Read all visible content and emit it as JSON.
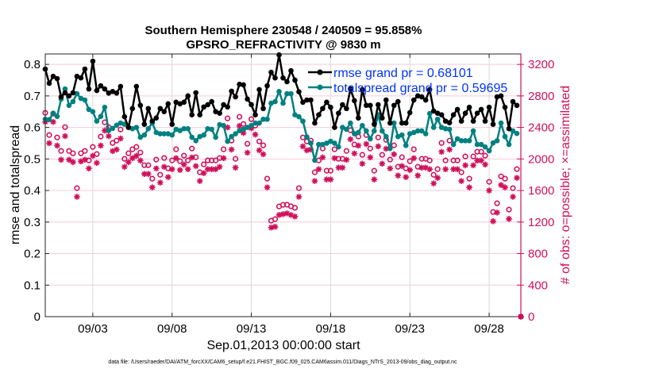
{
  "title_line1": "Southern Hemisphere 230548 / 240509 = 95.858%",
  "title_line2": "GPSRO_REFRACTIVITY @ 9830 m",
  "footer": "data file: /Users/raeder/DAI/ATM_forcXX/CAM6_setup/f.e21.FHIST_BGC.f09_025.CAM6assim.011/Diags_NTrS_2013-09/obs_diag_output.nc",
  "colors": {
    "rmse": "#000000",
    "totalspread": "#008080",
    "obs": "#D0105A",
    "legend_text": "#0033FF",
    "vgrid": "#d8d8d8",
    "hgrid": "#f6cadb"
  },
  "chart_data": {
    "type": "line",
    "xlabel": "Sep.01,2013 00:00:00 start",
    "ylabel": "rmse and totalspread",
    "ylabel_right": "# of obs: o=possible; ×=assimilated",
    "xlim": [
      0,
      30
    ],
    "ylim": [
      0,
      0.833
    ],
    "ylim_right": [
      0,
      3332
    ],
    "x_start": 0,
    "x_step": 0.25,
    "xticks": [
      3,
      8,
      13,
      18,
      23,
      28
    ],
    "xtick_labels": [
      "09/03",
      "09/08",
      "09/13",
      "09/18",
      "09/23",
      "09/28"
    ],
    "yticks": [
      "0",
      "0.1",
      "0.2",
      "0.3",
      "0.4",
      "0.5",
      "0.6",
      "0.7",
      "0.8"
    ],
    "yticks_right": [
      "0",
      "400",
      "800",
      "1200",
      "1600",
      "2000",
      "2400",
      "2800",
      "3200"
    ],
    "grid": true,
    "legend_placement": "top-right",
    "series": [
      {
        "name": "rmse grand pr = 0.68101",
        "axis": "left",
        "marker": "filled-circle",
        "values": [
          0.785,
          0.74,
          0.762,
          0.755,
          0.697,
          0.71,
          0.7,
          0.71,
          0.762,
          0.757,
          0.785,
          0.722,
          0.81,
          0.717,
          0.732,
          0.722,
          0.709,
          0.714,
          0.709,
          0.73,
          0.634,
          0.6,
          0.66,
          0.73,
          0.67,
          0.61,
          0.66,
          0.62,
          0.63,
          0.66,
          0.65,
          0.675,
          0.61,
          0.68,
          0.675,
          0.68,
          0.7,
          0.64,
          0.71,
          0.64,
          0.665,
          0.672,
          0.682,
          0.65,
          0.645,
          0.672,
          0.665,
          0.715,
          0.697,
          0.737,
          0.735,
          0.69,
          0.672,
          0.64,
          0.72,
          0.66,
          0.732,
          0.775,
          0.757,
          0.83,
          0.757,
          0.745,
          0.78,
          0.75,
          0.713,
          0.68,
          0.687,
          0.687,
          0.614,
          0.64,
          0.66,
          0.68,
          0.664,
          0.6,
          0.645,
          0.672,
          0.66,
          0.722,
          0.685,
          0.63,
          0.72,
          0.67,
          0.67,
          0.61,
          0.672,
          0.63,
          0.687,
          0.614,
          0.67,
          0.682,
          0.614,
          0.614,
          0.647,
          0.687,
          0.7,
          0.697,
          0.687,
          0.72,
          0.652,
          0.645,
          0.64,
          0.62,
          0.615,
          0.64,
          0.657,
          0.62,
          0.645,
          0.664,
          0.62,
          0.645,
          0.657,
          0.62,
          0.664,
          0.61,
          0.697,
          0.7,
          0.664,
          0.596,
          0.682,
          0.67,
          null
        ]
      },
      {
        "name": "totalspread grand pr = 0.59695",
        "axis": "left",
        "marker": "filled-circle",
        "values": [
          0.626,
          0.625,
          0.645,
          0.635,
          0.69,
          0.722,
          0.67,
          0.682,
          0.707,
          0.692,
          0.687,
          0.657,
          0.65,
          0.62,
          0.635,
          0.664,
          0.59,
          0.597,
          0.607,
          0.614,
          0.61,
          0.6,
          0.596,
          0.6,
          0.569,
          0.576,
          0.596,
          0.614,
          0.584,
          0.58,
          0.58,
          0.58,
          0.576,
          0.594,
          0.59,
          0.596,
          0.596,
          0.569,
          0.558,
          0.571,
          0.576,
          0.596,
          0.594,
          0.569,
          0.609,
          0.606,
          0.556,
          0.571,
          0.58,
          0.59,
          0.594,
          0.6,
          0.606,
          0.614,
          0.614,
          0.626,
          0.626,
          0.677,
          0.682,
          0.714,
          0.677,
          0.707,
          0.707,
          0.64,
          0.634,
          0.62,
          0.57,
          0.55,
          0.496,
          0.546,
          0.546,
          0.55,
          0.556,
          0.55,
          0.538,
          0.6,
          0.594,
          0.614,
          0.58,
          0.584,
          0.606,
          0.589,
          0.564,
          0.589,
          0.64,
          0.589,
          0.571,
          0.533,
          0.614,
          0.571,
          0.576,
          0.543,
          0.58,
          0.584,
          0.589,
          0.589,
          0.58,
          0.644,
          0.6,
          0.626,
          0.6,
          0.596,
          0.594,
          0.546,
          0.564,
          0.558,
          0.558,
          0.558,
          0.589,
          0.546,
          0.546,
          0.538,
          0.526,
          0.551,
          0.558,
          0.614,
          0.571,
          0.546,
          0.589,
          0.581,
          null
        ]
      },
      {
        "name": "possible",
        "axis": "right",
        "marker": "open-circle",
        "values": [
          2585,
          2304,
          2575,
          2273,
          2102,
          2404,
          2102,
          2072,
          1630,
          2072,
          2102,
          1982,
          2153,
          2062,
          2284,
          2465,
          2404,
          2203,
          2233,
          2374,
          2002,
          2072,
          2123,
          2153,
          2082,
          1921,
          1921,
          1750,
          1992,
          1800,
          2012,
          1881,
          1982,
          2123,
          1972,
          2042,
          1982,
          2133,
          2022,
          1831,
          1932,
          1982,
          1982,
          1982,
          2012,
          2123,
          2515,
          2233,
          2002,
          2535,
          2444,
          2193,
          2505,
          2424,
          2223,
          2173,
          1750,
          1217,
          1237,
          1398,
          1418,
          1420,
          1400,
          1380,
          1630,
          2273,
          2223,
          2233,
          1831,
          1982,
          2133,
          1851,
          1851,
          2123,
          2002,
          2002,
          2102,
          2364,
          2183,
          2284,
          2052,
          2304,
          2133,
          1851,
          2273,
          2052,
          2243,
          1992,
          2173,
          1901,
          2022,
          1881,
          1972,
          2123,
          1901,
          2002,
          2002,
          1982,
          1800,
          1871,
          2203,
          1982,
          2233,
          1982,
          1982,
          1831,
          2032,
          1750,
          2032,
          2092,
          2092,
          2042,
          1710,
          1328,
          1438,
          1780,
          1750,
          1358,
          1630,
          1871,
          0
        ]
      },
      {
        "name": "assimilated",
        "axis": "right",
        "marker": "asterisk",
        "values": [
          2470,
          2200,
          2470,
          2170,
          1990,
          2290,
          1990,
          1960,
          1520,
          1970,
          1990,
          1880,
          2040,
          1950,
          2170,
          2360,
          2290,
          2100,
          2120,
          2260,
          1900,
          1960,
          2010,
          2040,
          1980,
          1810,
          1810,
          1640,
          1880,
          1700,
          1900,
          1770,
          1870,
          2010,
          1860,
          1930,
          1870,
          2020,
          1910,
          1720,
          1820,
          1870,
          1870,
          1870,
          1900,
          2010,
          2400,
          2120,
          1890,
          2420,
          2330,
          2080,
          2390,
          2310,
          2110,
          2060,
          1640,
          1130,
          1140,
          1290,
          1300,
          1310,
          1290,
          1270,
          1520,
          2160,
          2110,
          2120,
          1720,
          1870,
          2020,
          1740,
          1740,
          2010,
          1890,
          1890,
          1990,
          2250,
          2070,
          2170,
          1940,
          2190,
          2020,
          1740,
          2160,
          1940,
          2130,
          1880,
          2060,
          1790,
          1910,
          1770,
          1860,
          2010,
          1790,
          1890,
          1890,
          1870,
          1690,
          1760,
          2090,
          1870,
          2120,
          1870,
          1870,
          1720,
          1920,
          1640,
          1920,
          1980,
          1980,
          1930,
          1600,
          1210,
          1320,
          1670,
          1640,
          1240,
          1520,
          1760,
          0
        ]
      }
    ]
  }
}
